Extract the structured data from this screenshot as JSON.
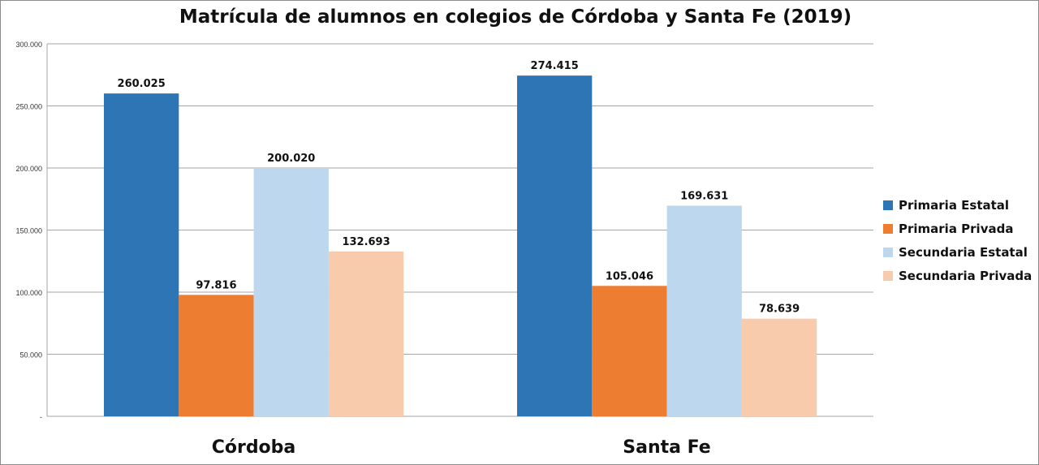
{
  "chart_data": {
    "type": "bar",
    "title": "Matrícula de alumnos en colegios de Córdoba y Santa Fe (2019)",
    "xlabel": "",
    "ylabel": "",
    "categories": [
      "Córdoba",
      "Santa Fe"
    ],
    "series": [
      {
        "name": "Primaria Estatal",
        "color": "#2e75b6",
        "values": [
          260025,
          274415
        ],
        "labels": [
          "260.025",
          "274.415"
        ]
      },
      {
        "name": "Primaria Privada",
        "color": "#ed7d31",
        "values": [
          97816,
          105046
        ],
        "labels": [
          "97.816",
          "105.046"
        ]
      },
      {
        "name": "Secundaria Estatal",
        "color": "#bdd7ee",
        "values": [
          200020,
          169631
        ],
        "labels": [
          "200.020",
          "169.631"
        ]
      },
      {
        "name": "Secundaria Privada",
        "color": "#f8cbad",
        "values": [
          132693,
          78639
        ],
        "labels": [
          "132.693",
          "78.639"
        ]
      }
    ],
    "ylim": [
      0,
      300000
    ],
    "yticks": [
      0,
      50000,
      100000,
      150000,
      200000,
      250000,
      300000
    ],
    "ytick_labels": [
      "-",
      "50.000",
      "100.000",
      "150.000",
      "200.000",
      "250.000",
      "300.000"
    ],
    "grid": true,
    "legend_position": "right"
  }
}
